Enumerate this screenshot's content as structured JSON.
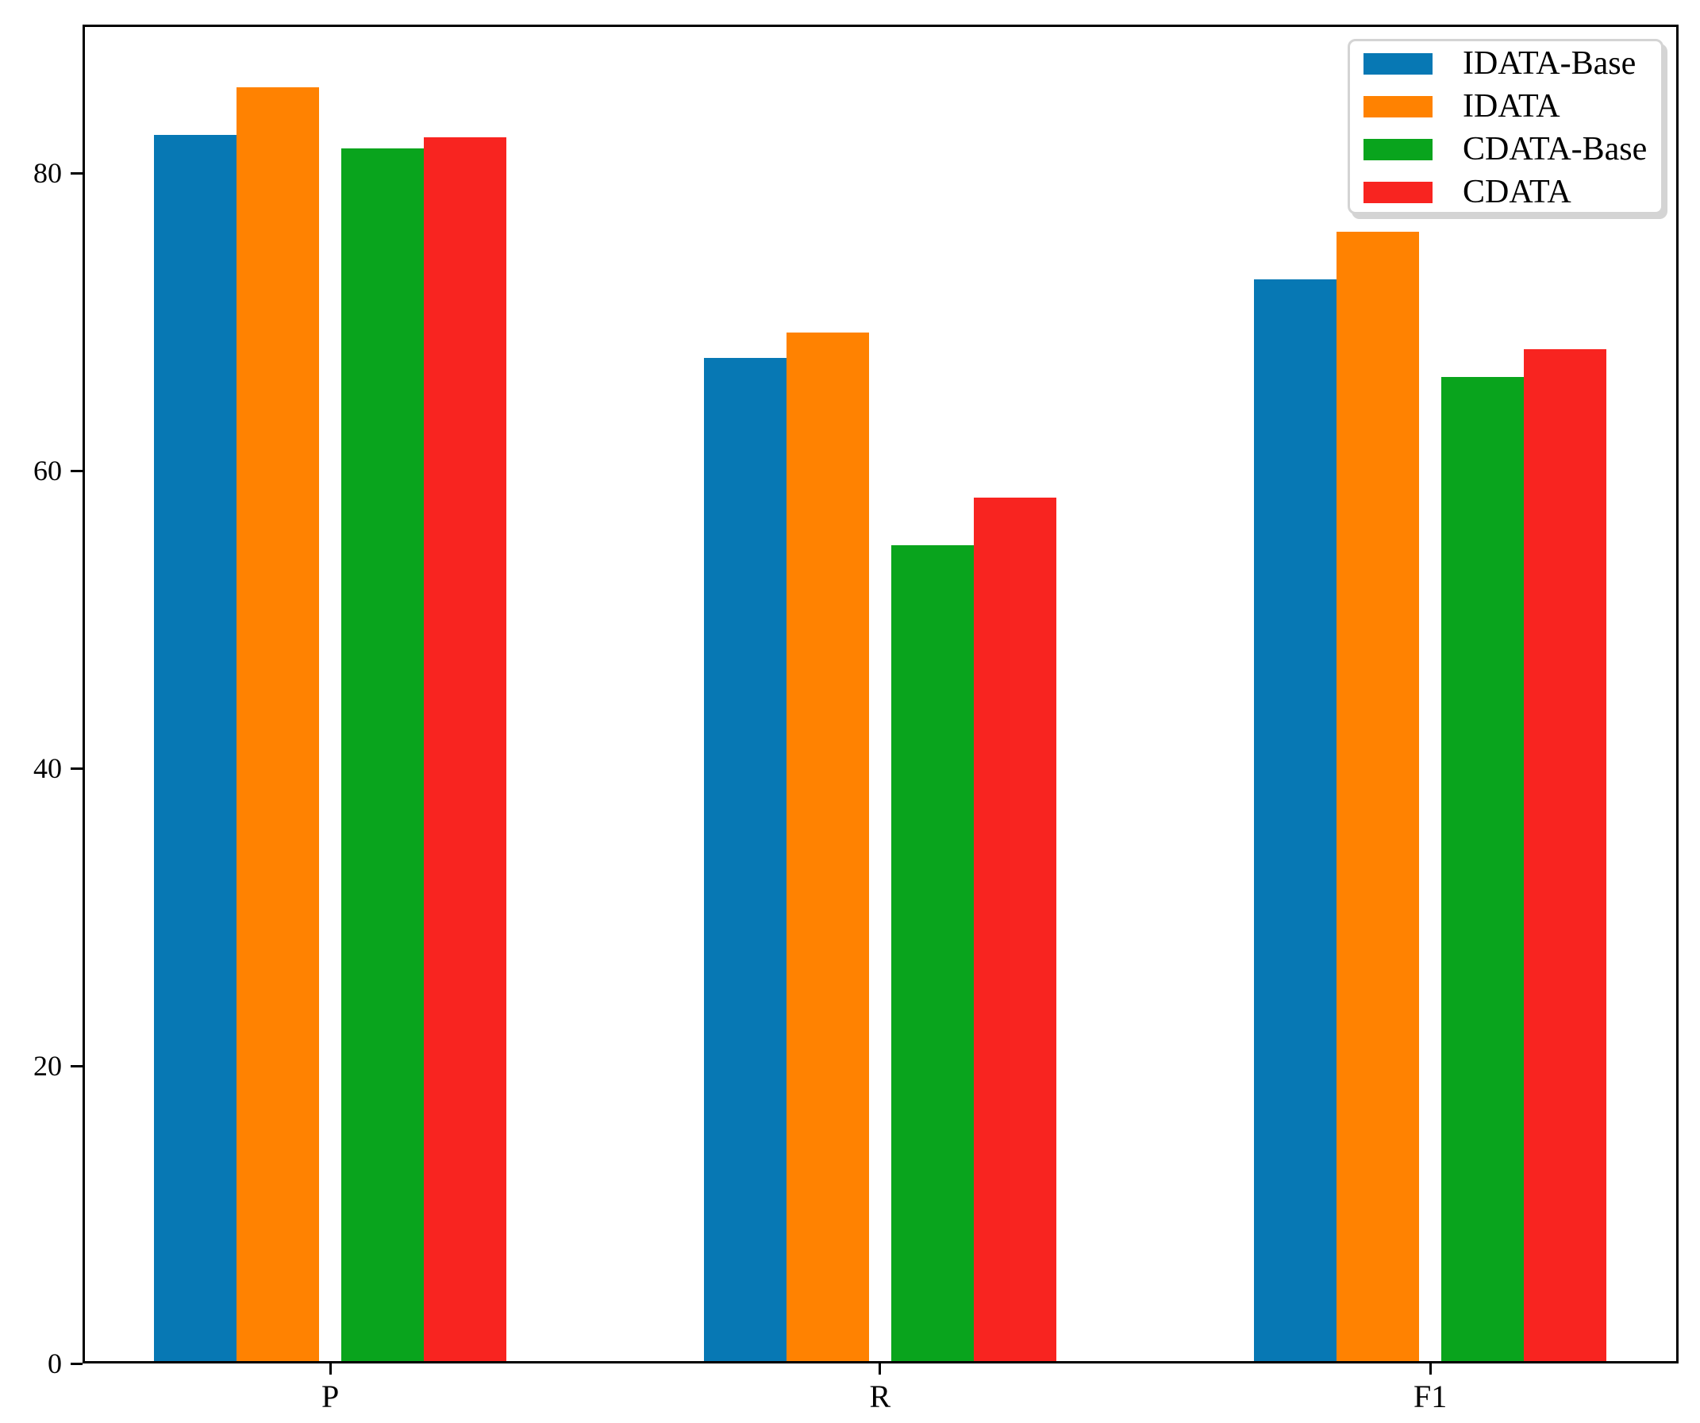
{
  "chart_data": {
    "type": "bar",
    "title": "",
    "xlabel": "",
    "ylabel": "",
    "categories": [
      "P",
      "R",
      "F1"
    ],
    "series": [
      {
        "name": "IDATA-Base",
        "color": "#0778b4",
        "values": [
          82.6,
          67.6,
          72.9
        ]
      },
      {
        "name": "IDATA",
        "color": "#ff8201",
        "values": [
          85.8,
          69.3,
          76.1
        ]
      },
      {
        "name": "CDATA-Base",
        "color": "#09a41d",
        "values": [
          81.7,
          55.0,
          66.3
        ]
      },
      {
        "name": "CDATA",
        "color": "#f82420",
        "values": [
          82.4,
          58.2,
          68.2
        ]
      }
    ],
    "ylim": [
      0,
      90
    ],
    "yticks": [
      0,
      20,
      40,
      60,
      80
    ],
    "grid": false,
    "legend": {
      "position": "upper right",
      "entries": [
        "IDATA-Base",
        "IDATA",
        "CDATA-Base",
        "CDATA"
      ]
    }
  },
  "style_colors": {
    "axis": "#000000",
    "text": "#000000",
    "legend_border": "#d4d4d4",
    "background": "#ffffff"
  }
}
